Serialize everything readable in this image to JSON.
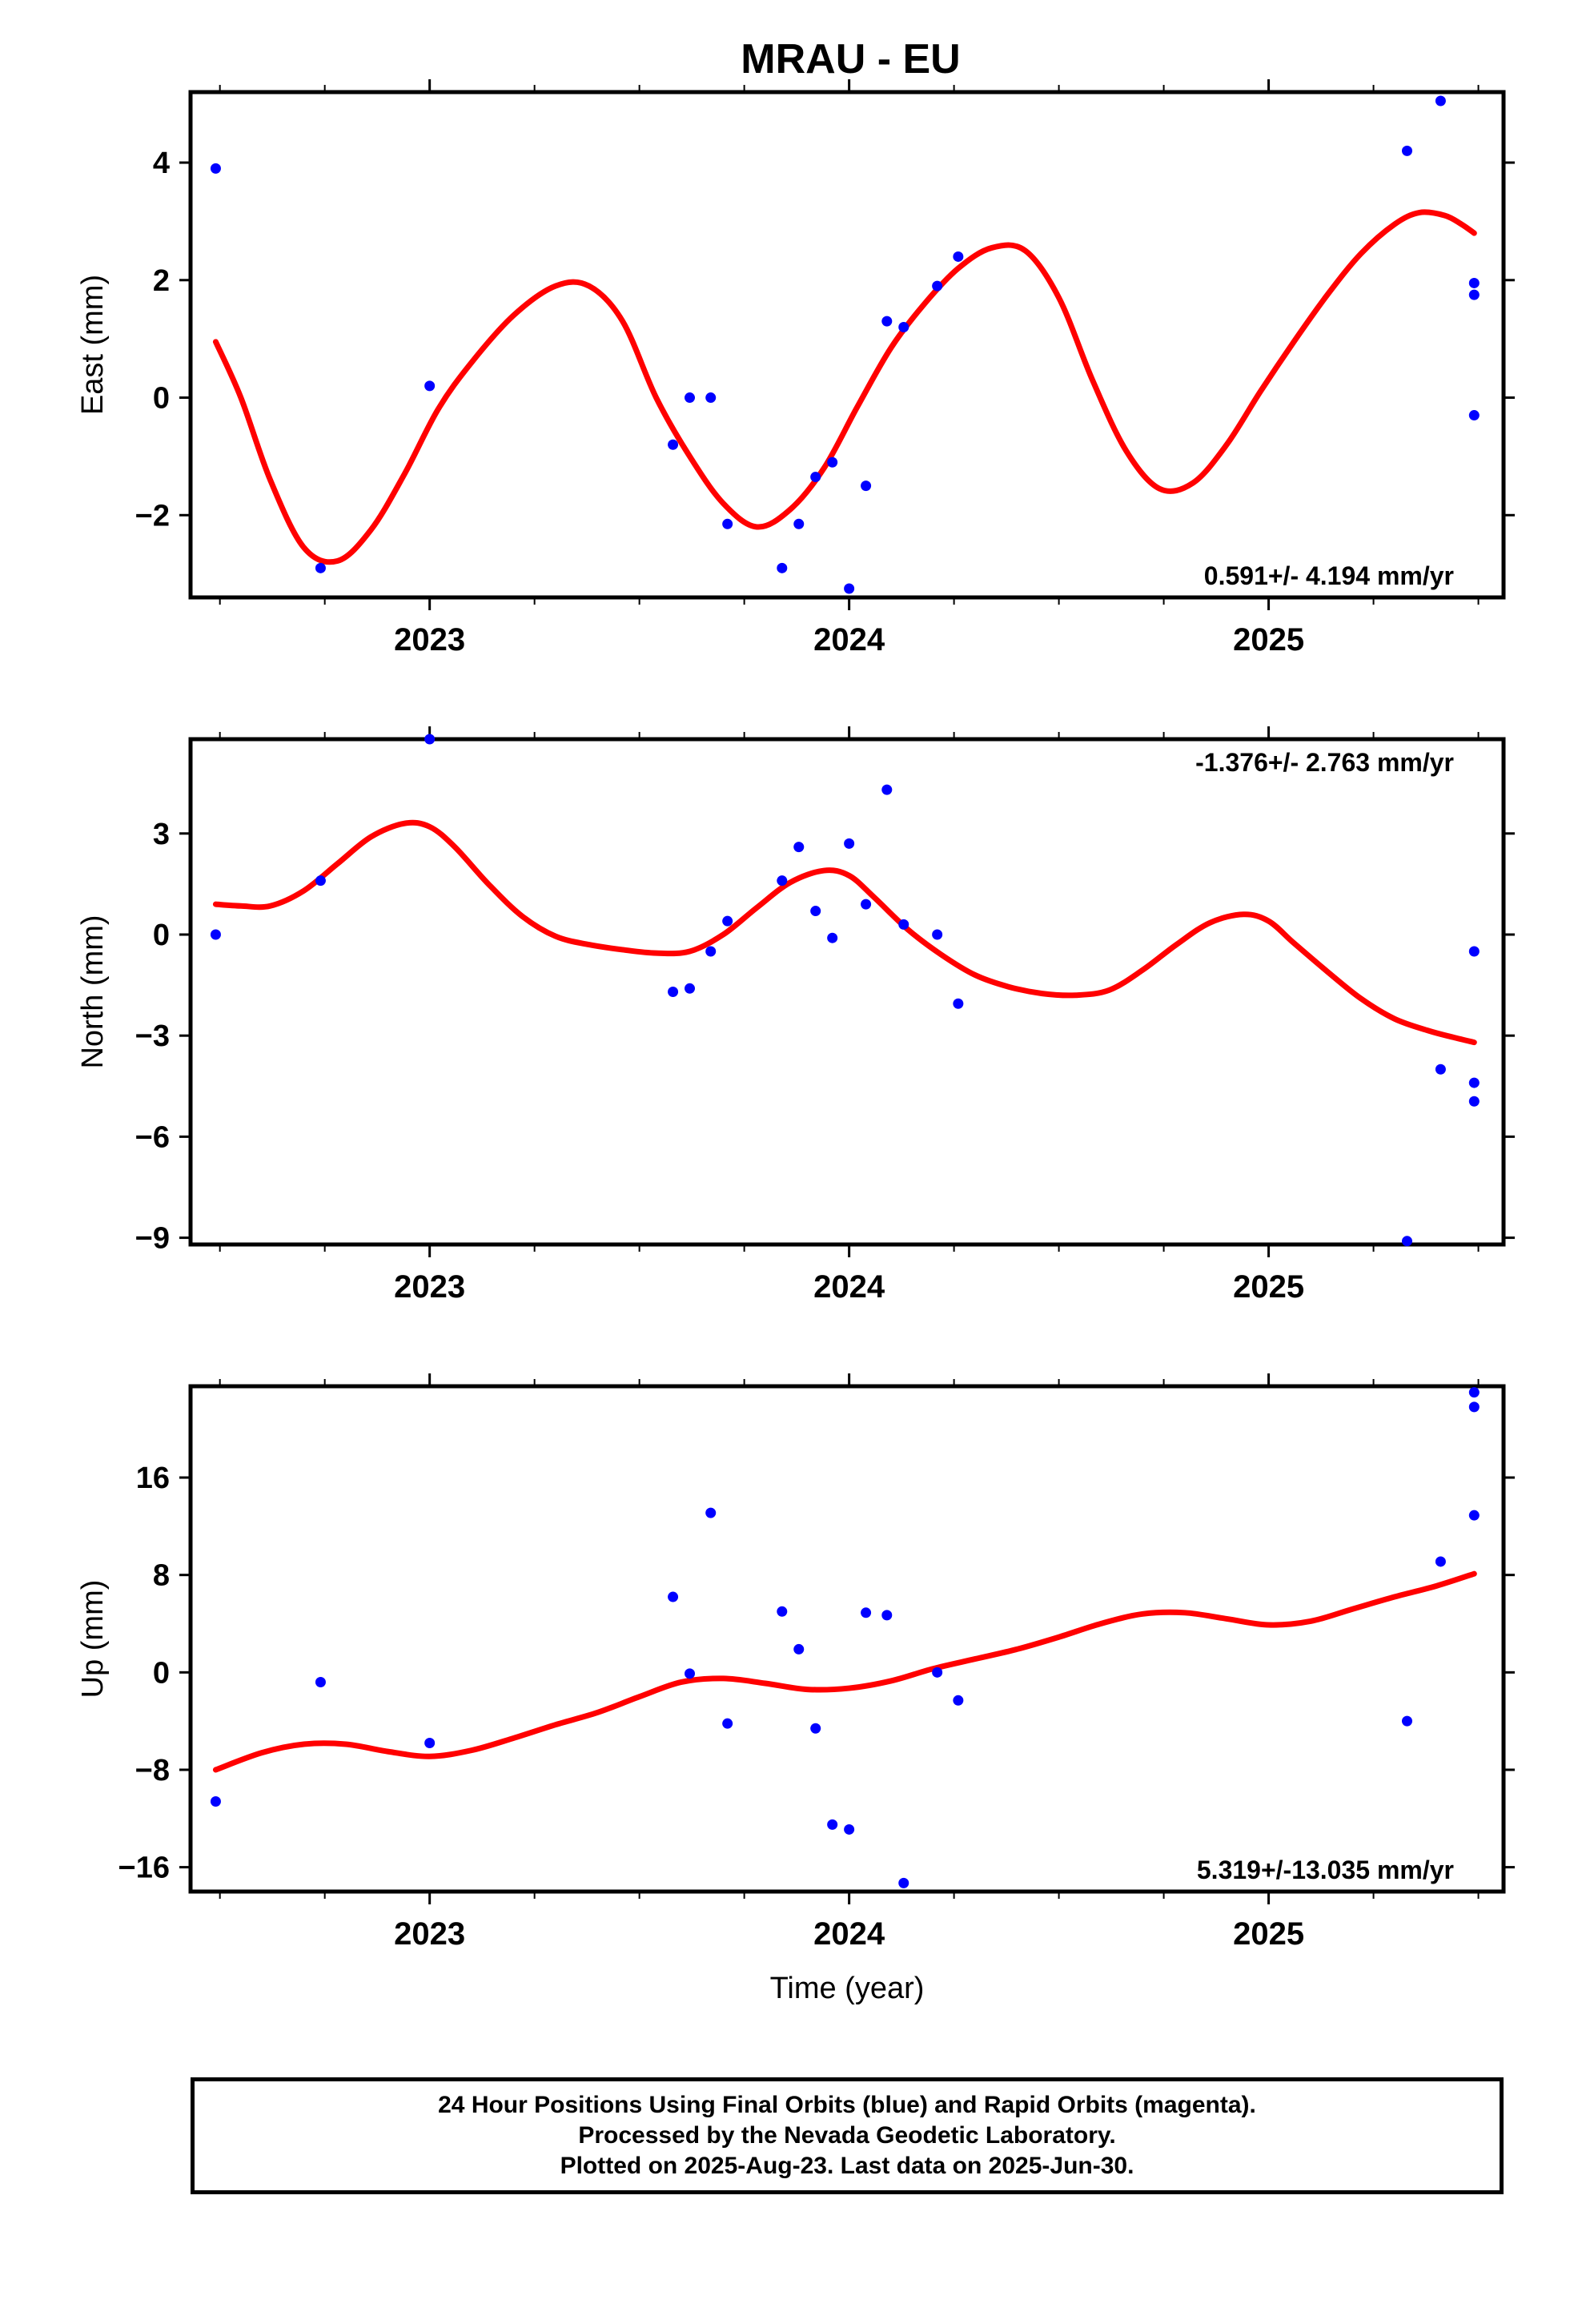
{
  "title": "MRAU - EU",
  "xlabel": "Time (year)",
  "footer": {
    "line1": "24 Hour Positions Using Final Orbits (blue) and Rapid Orbits (magenta).",
    "line2": "Processed by the Nevada Geodetic Laboratory.",
    "line3": "Plotted on 2025-Aug-23. Last data on 2025-Jun-30."
  },
  "colors": {
    "points": "#0000ff",
    "fit": "#ff0000",
    "axes": "#000000"
  },
  "chart_data": [
    {
      "type": "scatter",
      "ylabel": "East (mm)",
      "rate_label": "0.591+/- 4.194 mm/yr",
      "rate_position": "bottom-right",
      "xlim": [
        2022.43,
        2025.56
      ],
      "ylim": [
        -3.4,
        5.2
      ],
      "yticks": [
        -2,
        0,
        2,
        4
      ],
      "ytick_labels": [
        "−2",
        "0",
        "2",
        "4"
      ],
      "xticks": [
        2023,
        2024,
        2025
      ],
      "xtick_labels": [
        "2023",
        "2024",
        "2025"
      ],
      "points": {
        "x": [
          2022.49,
          2022.74,
          2023.0,
          2023.58,
          2023.62,
          2023.67,
          2023.71,
          2023.84,
          2023.88,
          2023.92,
          2023.96,
          2024.0,
          2024.04,
          2024.09,
          2024.13,
          2024.21,
          2024.26,
          2025.33,
          2025.41,
          2025.49,
          2025.49,
          2025.49
        ],
        "y": [
          3.9,
          -2.9,
          0.2,
          -0.8,
          0.0,
          0.0,
          -2.15,
          -2.9,
          -2.15,
          -1.35,
          -1.1,
          -3.25,
          -1.5,
          1.3,
          1.2,
          1.9,
          2.4,
          4.2,
          5.05,
          1.95,
          1.75,
          -0.3
        ]
      },
      "fit": {
        "x": [
          2022.49,
          2022.55,
          2022.62,
          2022.7,
          2022.78,
          2022.86,
          2022.94,
          2023.02,
          2023.1,
          2023.2,
          2023.3,
          2023.38,
          2023.46,
          2023.54,
          2023.62,
          2023.7,
          2023.78,
          2023.86,
          2023.94,
          2024.02,
          2024.1,
          2024.18,
          2024.26,
          2024.34,
          2024.42,
          2024.5,
          2024.58,
          2024.66,
          2024.74,
          2024.82,
          2024.9,
          2024.98,
          2025.06,
          2025.14,
          2025.22,
          2025.3,
          2025.36,
          2025.42,
          2025.46,
          2025.49
        ],
        "y": [
          0.95,
          0.0,
          -1.4,
          -2.55,
          -2.78,
          -2.25,
          -1.3,
          -0.2,
          0.6,
          1.4,
          1.9,
          1.9,
          1.3,
          0.0,
          -1.0,
          -1.8,
          -2.2,
          -1.9,
          -1.2,
          -0.15,
          0.85,
          1.6,
          2.2,
          2.55,
          2.5,
          1.7,
          0.3,
          -0.9,
          -1.55,
          -1.45,
          -0.8,
          0.1,
          0.95,
          1.75,
          2.45,
          2.95,
          3.15,
          3.1,
          2.95,
          2.8
        ]
      }
    },
    {
      "type": "scatter",
      "ylabel": "North (mm)",
      "rate_label": "-1.376+/- 2.763 mm/yr",
      "rate_position": "top-right",
      "xlim": [
        2022.43,
        2025.56
      ],
      "ylim": [
        -9.2,
        5.8
      ],
      "yticks": [
        -9,
        -6,
        -3,
        0,
        3
      ],
      "ytick_labels": [
        "−9",
        "−6",
        "−3",
        "0",
        "3"
      ],
      "xticks": [
        2023,
        2024,
        2025
      ],
      "xtick_labels": [
        "2023",
        "2024",
        "2025"
      ],
      "points": {
        "x": [
          2022.49,
          2022.74,
          2023.0,
          2023.58,
          2023.62,
          2023.67,
          2023.71,
          2023.84,
          2023.88,
          2023.92,
          2023.96,
          2024.0,
          2024.04,
          2024.09,
          2024.13,
          2024.21,
          2024.26,
          2025.33,
          2025.41,
          2025.49,
          2025.49,
          2025.49
        ],
        "y": [
          0.0,
          1.6,
          5.8,
          -1.7,
          -1.6,
          -0.5,
          0.4,
          1.6,
          2.6,
          0.7,
          -0.1,
          2.7,
          0.9,
          4.3,
          0.3,
          0.0,
          -2.05,
          -9.1,
          -4.0,
          -0.5,
          -4.4,
          -4.95
        ]
      },
      "fit": {
        "x": [
          2022.49,
          2022.55,
          2022.62,
          2022.7,
          2022.78,
          2022.86,
          2022.94,
          2023.0,
          2023.06,
          2023.14,
          2023.22,
          2023.3,
          2023.38,
          2023.46,
          2023.54,
          2023.62,
          2023.7,
          2023.78,
          2023.86,
          2023.94,
          2024.0,
          2024.06,
          2024.14,
          2024.22,
          2024.3,
          2024.38,
          2024.46,
          2024.54,
          2024.62,
          2024.7,
          2024.78,
          2024.86,
          2024.94,
          2025.0,
          2025.06,
          2025.14,
          2025.22,
          2025.3,
          2025.38,
          2025.44,
          2025.49
        ],
        "y": [
          0.9,
          0.85,
          0.85,
          1.3,
          2.1,
          2.9,
          3.3,
          3.2,
          2.6,
          1.5,
          0.55,
          -0.05,
          -0.3,
          -0.45,
          -0.55,
          -0.5,
          0.0,
          0.8,
          1.55,
          1.9,
          1.75,
          1.1,
          0.15,
          -0.6,
          -1.2,
          -1.55,
          -1.75,
          -1.8,
          -1.65,
          -1.05,
          -0.3,
          0.35,
          0.6,
          0.4,
          -0.25,
          -1.1,
          -1.9,
          -2.5,
          -2.85,
          -3.05,
          -3.2
        ]
      }
    },
    {
      "type": "scatter",
      "ylabel": "Up (mm)",
      "rate_label": "5.319+/-13.035 mm/yr",
      "rate_position": "bottom-right",
      "xlim": [
        2022.43,
        2025.56
      ],
      "ylim": [
        -18,
        23.5
      ],
      "yticks": [
        -16,
        -8,
        0,
        8,
        16
      ],
      "ytick_labels": [
        "−16",
        "−8",
        "0",
        "8",
        "16"
      ],
      "xticks": [
        2023,
        2024,
        2025
      ],
      "xtick_labels": [
        "2023",
        "2024",
        "2025"
      ],
      "points": {
        "x": [
          2022.49,
          2022.74,
          2023.0,
          2023.58,
          2023.62,
          2023.67,
          2023.71,
          2023.84,
          2023.88,
          2023.92,
          2023.96,
          2024.0,
          2024.04,
          2024.09,
          2024.13,
          2024.21,
          2024.26,
          2025.33,
          2025.41,
          2025.49,
          2025.49,
          2025.49
        ],
        "y": [
          -10.6,
          -0.8,
          -5.8,
          6.2,
          -0.1,
          13.1,
          -4.2,
          5.0,
          1.9,
          -4.6,
          -12.5,
          -12.9,
          4.9,
          4.7,
          -17.3,
          0.0,
          -2.3,
          -4.0,
          9.1,
          23.0,
          21.8,
          12.9
        ]
      },
      "fit": {
        "x": [
          2022.49,
          2022.6,
          2022.7,
          2022.8,
          2022.9,
          2023.0,
          2023.1,
          2023.2,
          2023.3,
          2023.4,
          2023.5,
          2023.6,
          2023.7,
          2023.8,
          2023.9,
          2024.0,
          2024.1,
          2024.2,
          2024.3,
          2024.4,
          2024.5,
          2024.6,
          2024.7,
          2024.8,
          2024.9,
          2025.0,
          2025.1,
          2025.2,
          2025.3,
          2025.4,
          2025.49
        ],
        "y": [
          -8.0,
          -6.6,
          -5.9,
          -5.9,
          -6.5,
          -6.9,
          -6.4,
          -5.4,
          -4.3,
          -3.3,
          -2.0,
          -0.8,
          -0.5,
          -0.9,
          -1.4,
          -1.3,
          -0.7,
          0.3,
          1.1,
          1.9,
          2.9,
          4.0,
          4.8,
          4.9,
          4.4,
          3.9,
          4.2,
          5.2,
          6.2,
          7.1,
          8.1
        ]
      }
    }
  ]
}
